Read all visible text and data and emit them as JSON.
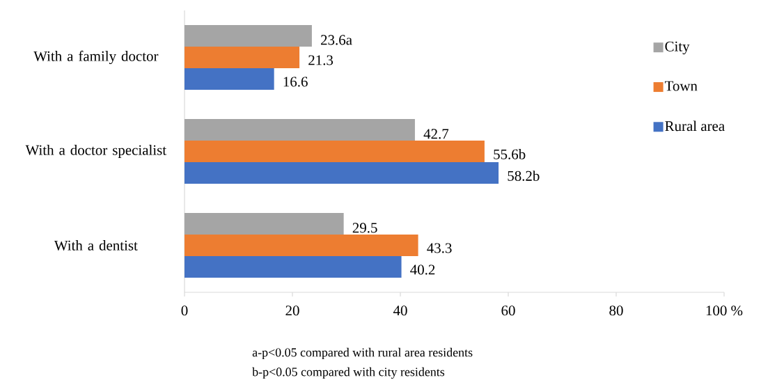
{
  "chart_data": {
    "type": "bar",
    "orientation": "horizontal",
    "categories": [
      "With a family doctor",
      "With a doctor specialist",
      "With a dentist"
    ],
    "series": [
      {
        "name": "City",
        "color": "#a5a5a5",
        "values": [
          23.6,
          42.7,
          29.5
        ],
        "value_labels": [
          "23.6a",
          "42.7",
          "29.5"
        ]
      },
      {
        "name": "Town",
        "color": "#ed7d31",
        "values": [
          21.3,
          55.6,
          43.3
        ],
        "value_labels": [
          "21.3",
          "55.6b",
          "43.3"
        ]
      },
      {
        "name": "Rural area",
        "color": "#4472c4",
        "values": [
          16.6,
          58.2,
          40.2
        ],
        "value_labels": [
          "16.6",
          "58.2b",
          "40.2"
        ]
      }
    ],
    "xlim": [
      0,
      100
    ],
    "xticks": [
      0,
      20,
      40,
      60,
      80,
      {
        "value": 100,
        "label": "100 %"
      }
    ],
    "grid": false,
    "legend": "right",
    "annotations": [
      "a-p<0.05 compared with rural area residents",
      "b-p<0.05 compared with city residents"
    ]
  }
}
